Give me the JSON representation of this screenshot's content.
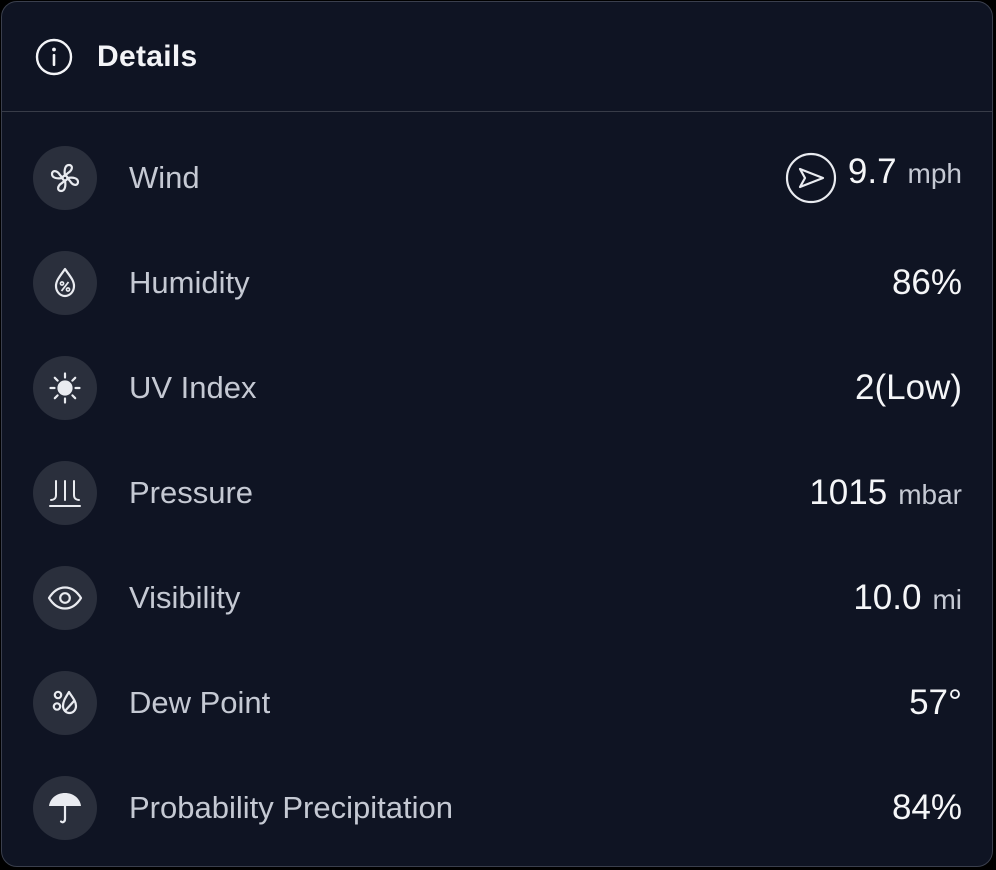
{
  "header": {
    "title": "Details",
    "icon": "info-icon"
  },
  "rows": [
    {
      "icon": "fan-icon",
      "label": "Wind",
      "value": "9.7",
      "unit": "mph",
      "direction_icon": "navigation-arrow-icon"
    },
    {
      "icon": "humidity-drop-icon",
      "label": "Humidity",
      "value": "86%",
      "unit": ""
    },
    {
      "icon": "sun-icon",
      "label": "UV Index",
      "value": "2(Low)",
      "unit": ""
    },
    {
      "icon": "pressure-icon",
      "label": "Pressure",
      "value": "1015",
      "unit": "mbar"
    },
    {
      "icon": "eye-icon",
      "label": "Visibility",
      "value": "10.0",
      "unit": "mi"
    },
    {
      "icon": "dew-point-icon",
      "label": "Dew Point",
      "value": "57°",
      "unit": ""
    },
    {
      "icon": "umbrella-icon",
      "label": "Probability Precipitation",
      "value": "84%",
      "unit": ""
    }
  ],
  "colors": {
    "background": "#0f1423",
    "icon_circle": "#2a2f3c",
    "label": "#c5c9d3",
    "value": "#f5f6f8"
  }
}
